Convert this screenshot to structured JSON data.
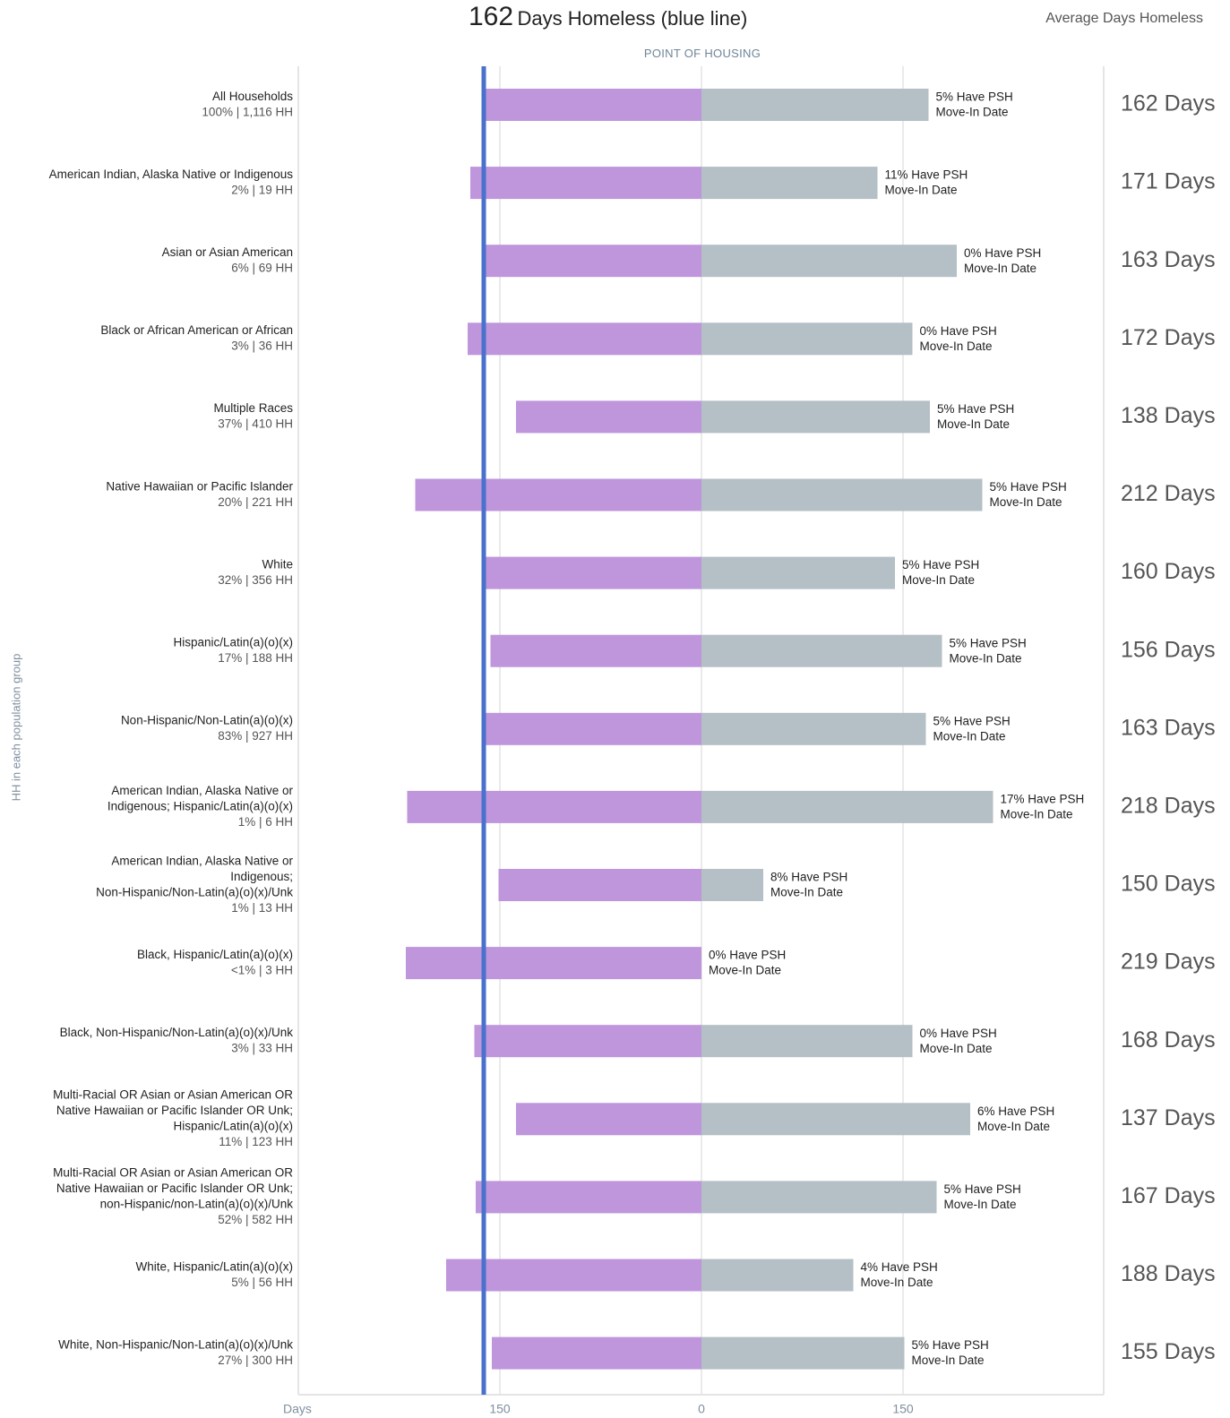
{
  "header": {
    "title_value": "162",
    "title_text": "Days Homeless (blue line)",
    "right_label": "Average Days Homeless",
    "point_label": "POINT OF HOUSING"
  },
  "y_axis_title": "HH in each population group",
  "x_axis_label": "Days",
  "colors": {
    "left_bar": "#bf95dc",
    "right_bar": "#b4bfc6",
    "avg_line": "#4a72cc",
    "grid": "#e4e4e4",
    "day_text": "#555555"
  },
  "chart_data": {
    "type": "bar",
    "orientation": "horizontal",
    "layout": "diverging",
    "x_tick_labels": [
      "150",
      "0",
      "150"
    ],
    "average_line_days": 162,
    "avg_suffix": "Days",
    "categories": [
      {
        "label": [
          "All Households"
        ],
        "share": "100% | 1,116 HH",
        "before_housing_days": 162,
        "after_housing_days": 169,
        "psh_label": [
          "5% Have PSH",
          "Move-In Date"
        ],
        "average_days": 162
      },
      {
        "label": [
          "American Indian, Alaska Native or Indigenous"
        ],
        "share": "2% | 19 HH",
        "before_housing_days": 172,
        "after_housing_days": 131,
        "psh_label": [
          "11% Have PSH",
          "Move-In Date"
        ],
        "average_days": 171
      },
      {
        "label": [
          "Asian or Asian American"
        ],
        "share": "6% | 69 HH",
        "before_housing_days": 162,
        "after_housing_days": 190,
        "psh_label": [
          "0% Have PSH",
          "Move-In Date"
        ],
        "average_days": 163
      },
      {
        "label": [
          "Black or African American or African"
        ],
        "share": "3% | 36 HH",
        "before_housing_days": 174,
        "after_housing_days": 157,
        "psh_label": [
          "0% Have PSH",
          "Move-In Date"
        ],
        "average_days": 172
      },
      {
        "label": [
          "Multiple Races"
        ],
        "share": "37% | 410 HH",
        "before_housing_days": 138,
        "after_housing_days": 170,
        "psh_label": [
          "5% Have PSH",
          "Move-In Date"
        ],
        "average_days": 138
      },
      {
        "label": [
          "Native Hawaiian or Pacific Islander"
        ],
        "share": "20% | 221 HH",
        "before_housing_days": 213,
        "after_housing_days": 209,
        "psh_label": [
          "5% Have PSH",
          "Move-In Date"
        ],
        "average_days": 212
      },
      {
        "label": [
          "White"
        ],
        "share": "32% | 356 HH",
        "before_housing_days": 162,
        "after_housing_days": 144,
        "psh_label": [
          "5% Have PSH",
          "Move-In Date"
        ],
        "average_days": 160
      },
      {
        "label": [
          "Hispanic/Latin(a)(o)(x)"
        ],
        "share": "17% | 188 HH",
        "before_housing_days": 157,
        "after_housing_days": 179,
        "psh_label": [
          "5% Have PSH",
          "Move-In Date"
        ],
        "average_days": 156
      },
      {
        "label": [
          "Non-Hispanic/Non-Latin(a)(o)(x)"
        ],
        "share": "83% | 927 HH",
        "before_housing_days": 162,
        "after_housing_days": 167,
        "psh_label": [
          "5% Have PSH",
          "Move-In Date"
        ],
        "average_days": 163
      },
      {
        "label": [
          "American Indian, Alaska Native or",
          "Indigenous; Hispanic/Latin(a)(o)(x)"
        ],
        "share": "1% | 6 HH",
        "before_housing_days": 219,
        "after_housing_days": 217,
        "psh_label": [
          "17% Have PSH",
          "Move-In Date"
        ],
        "average_days": 218
      },
      {
        "label": [
          "American Indian, Alaska Native or",
          "Indigenous;",
          "Non-Hispanic/Non-Latin(a)(o)(x)/Unk"
        ],
        "share": "1% | 13 HH",
        "before_housing_days": 151,
        "after_housing_days": 46,
        "psh_label": [
          "8% Have PSH",
          "Move-In Date"
        ],
        "average_days": 150
      },
      {
        "label": [
          "Black, Hispanic/Latin(a)(o)(x)"
        ],
        "share": "<1% | 3 HH",
        "before_housing_days": 220,
        "after_housing_days": 0,
        "psh_label": [
          "0% Have PSH",
          "Move-In Date"
        ],
        "average_days": 219
      },
      {
        "label": [
          "Black, Non-Hispanic/Non-Latin(a)(o)(x)/Unk"
        ],
        "share": "3% | 33 HH",
        "before_housing_days": 169,
        "after_housing_days": 157,
        "psh_label": [
          "0% Have PSH",
          "Move-In Date"
        ],
        "average_days": 168
      },
      {
        "label": [
          "Multi-Racial OR Asian or Asian American OR",
          "Native Hawaiian or Pacific Islander OR Unk;",
          "Hispanic/Latin(a)(o)(x)"
        ],
        "share": "11% | 123 HH",
        "before_housing_days": 138,
        "after_housing_days": 200,
        "psh_label": [
          "6% Have PSH",
          "Move-In Date"
        ],
        "average_days": 137
      },
      {
        "label": [
          "Multi-Racial OR Asian or Asian American OR",
          "Native Hawaiian or Pacific Islander OR Unk;",
          "non-Hispanic/non-Latin(a)(o)(x)/Unk"
        ],
        "share": "52% | 582 HH",
        "before_housing_days": 168,
        "after_housing_days": 175,
        "psh_label": [
          "5% Have PSH",
          "Move-In Date"
        ],
        "average_days": 167
      },
      {
        "label": [
          "White, Hispanic/Latin(a)(o)(x)"
        ],
        "share": "5% | 56 HH",
        "before_housing_days": 190,
        "after_housing_days": 113,
        "psh_label": [
          "4% Have PSH",
          "Move-In Date"
        ],
        "average_days": 188
      },
      {
        "label": [
          "White, Non-Hispanic/Non-Latin(a)(o)(x)/Unk"
        ],
        "share": "27% | 300 HH",
        "before_housing_days": 156,
        "after_housing_days": 151,
        "psh_label": [
          "5% Have PSH",
          "Move-In Date"
        ],
        "average_days": 155
      }
    ]
  }
}
